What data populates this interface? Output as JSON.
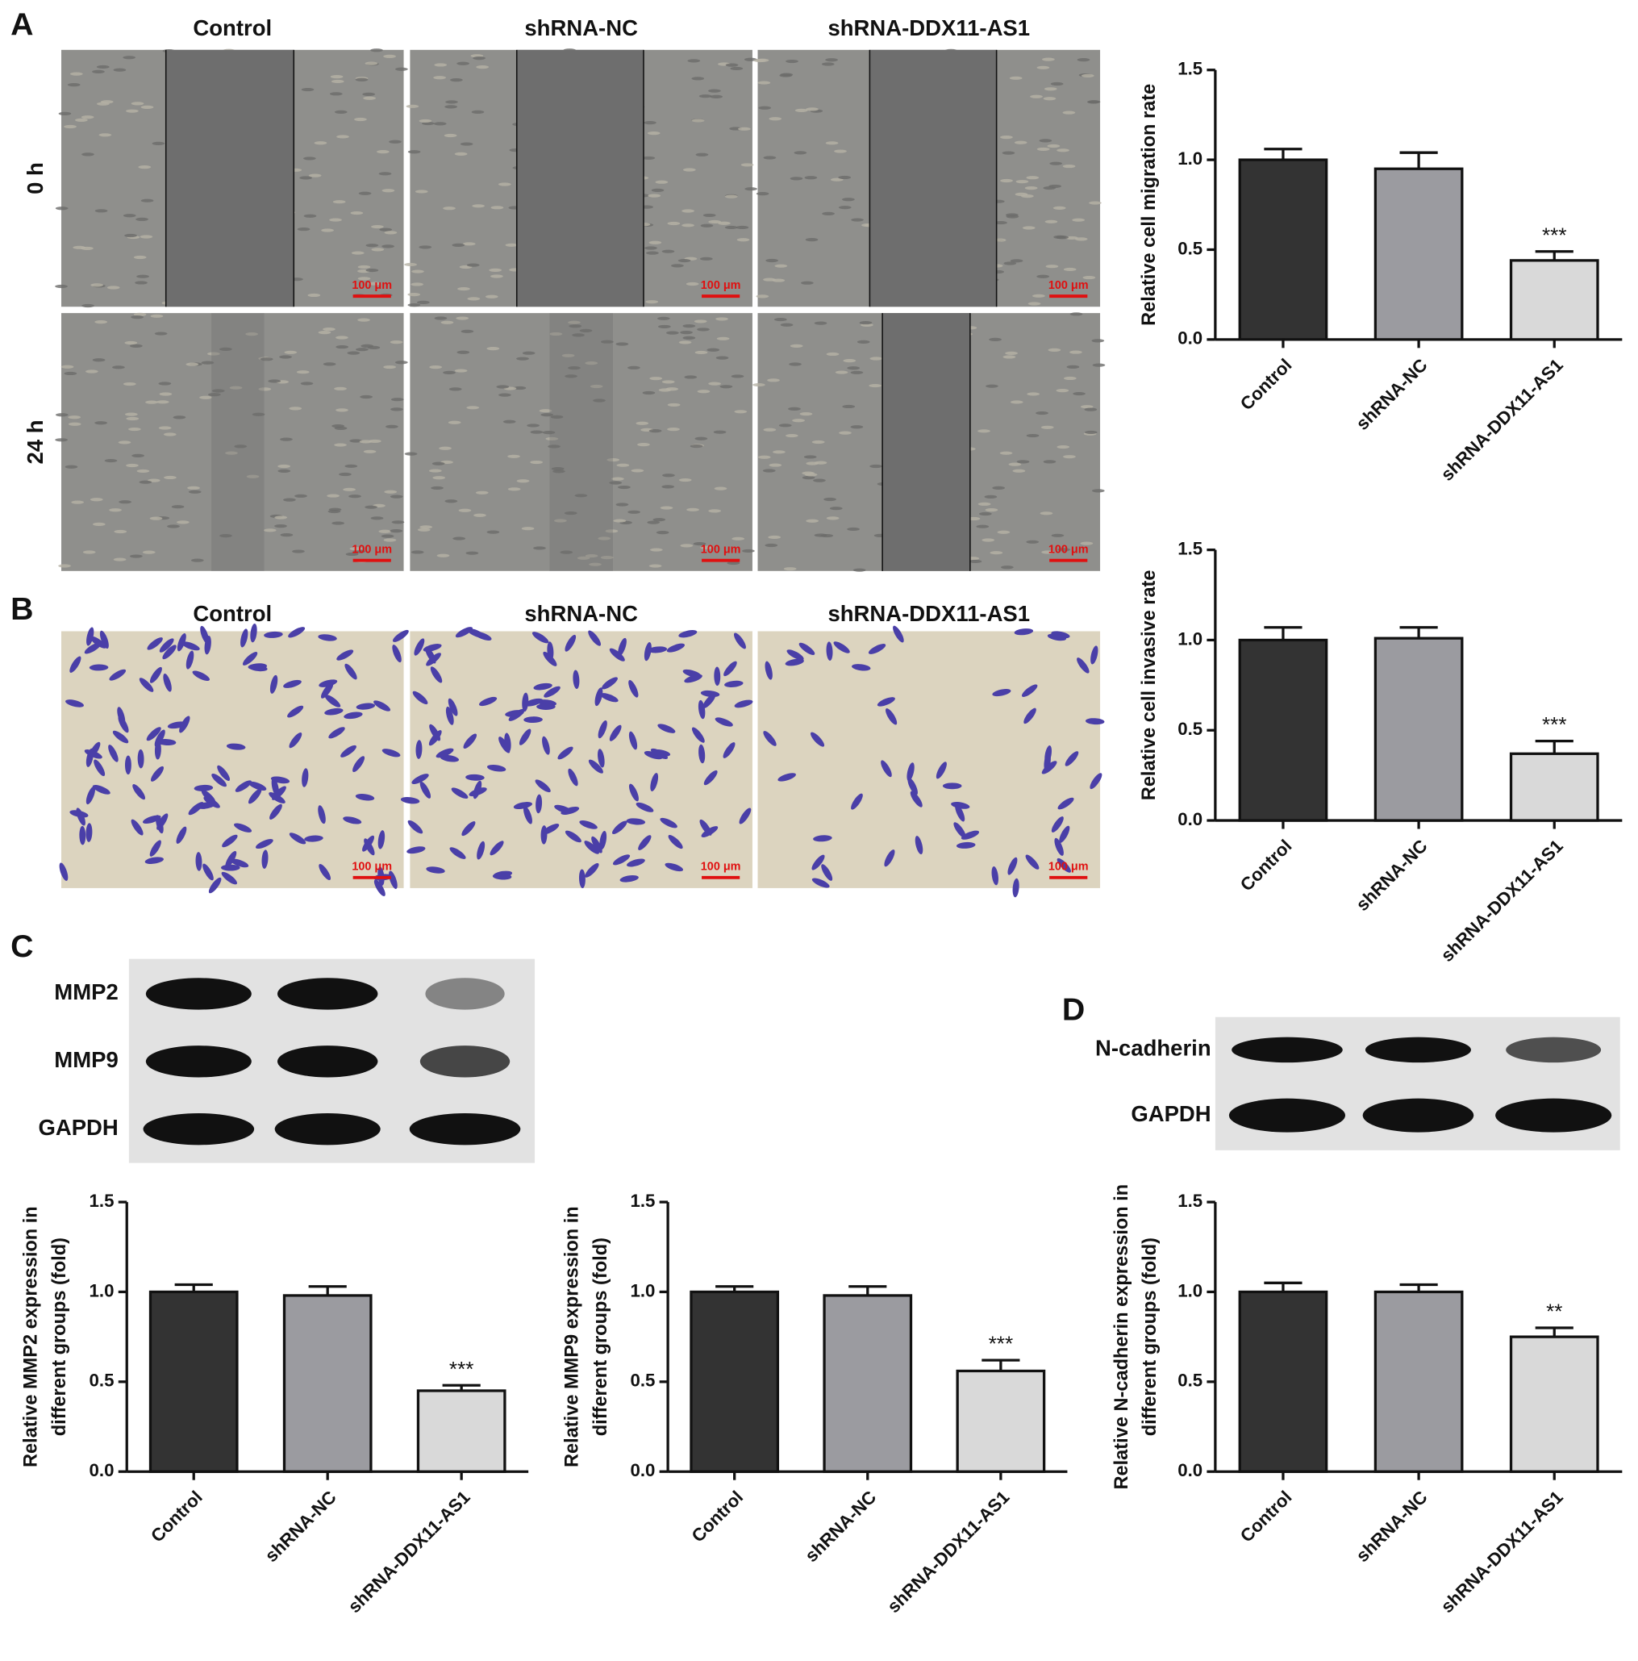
{
  "panels": {
    "a": "A",
    "b": "B",
    "c": "C",
    "d": "D"
  },
  "wound_healing": {
    "columns": [
      "Control",
      "shRNA-NC",
      "shRNA-DDX11-AS1"
    ],
    "rows": [
      "0 h",
      "24 h"
    ],
    "scale_bar": "100 μm"
  },
  "transwell": {
    "columns": [
      "Control",
      "shRNA-NC",
      "shRNA-DDX11-AS1"
    ],
    "scale_bar": "100 μm"
  },
  "blot_c": {
    "rows": [
      "MMP2",
      "MMP9",
      "GAPDH"
    ]
  },
  "blot_d": {
    "rows": [
      "N-cadherin",
      "GAPDH"
    ]
  },
  "chart_data": [
    {
      "type": "bar",
      "ylabel": [
        "Relative cell migration rate"
      ],
      "categories": [
        "Control",
        "shRNA-NC",
        "shRNA-DDX11-AS1"
      ],
      "values": [
        1.0,
        0.95,
        0.44
      ],
      "errors": [
        0.06,
        0.09,
        0.05
      ],
      "value_annotations": [
        null,
        null,
        "***"
      ],
      "colors": [
        "#333333",
        "#9b9ba0",
        "#d9d9d9"
      ],
      "ylim": [
        0,
        1.5
      ],
      "yticks": [
        {
          "value": 0,
          "label": "0.0"
        },
        0.5,
        {
          "value": 1,
          "label": "1.0"
        },
        1.5
      ]
    },
    {
      "type": "bar",
      "ylabel": [
        "Relative cell invasive rate"
      ],
      "categories": [
        "Control",
        "shRNA-NC",
        "shRNA-DDX11-AS1"
      ],
      "values": [
        1.0,
        1.01,
        0.37
      ],
      "errors": [
        0.07,
        0.06,
        0.07
      ],
      "value_annotations": [
        null,
        null,
        "***"
      ],
      "colors": [
        "#333333",
        "#9b9ba0",
        "#d9d9d9"
      ],
      "ylim": [
        0,
        1.5
      ],
      "yticks": [
        {
          "value": 0,
          "label": "0.0"
        },
        0.5,
        {
          "value": 1,
          "label": "1.0"
        },
        1.5
      ]
    },
    {
      "type": "bar",
      "ylabel": [
        "Relative MMP2 expression in",
        "different groups (fold)"
      ],
      "categories": [
        "Control",
        "shRNA-NC",
        "shRNA-DDX11-AS1"
      ],
      "values": [
        1.0,
        0.98,
        0.45
      ],
      "errors": [
        0.04,
        0.05,
        0.03
      ],
      "value_annotations": [
        null,
        null,
        "***"
      ],
      "colors": [
        "#333333",
        "#9b9ba0",
        "#d9d9d9"
      ],
      "ylim": [
        0,
        1.5
      ],
      "yticks": [
        {
          "value": 0,
          "label": "0.0"
        },
        0.5,
        {
          "value": 1,
          "label": "1.0"
        },
        1.5
      ]
    },
    {
      "type": "bar",
      "ylabel": [
        "Relative MMP9 expression in",
        "different groups (fold)"
      ],
      "categories": [
        "Control",
        "shRNA-NC",
        "shRNA-DDX11-AS1"
      ],
      "values": [
        1.0,
        0.98,
        0.56
      ],
      "errors": [
        0.03,
        0.05,
        0.06
      ],
      "value_annotations": [
        null,
        null,
        "***"
      ],
      "colors": [
        "#333333",
        "#9b9ba0",
        "#d9d9d9"
      ],
      "ylim": [
        0,
        1.5
      ],
      "yticks": [
        {
          "value": 0,
          "label": "0.0"
        },
        0.5,
        {
          "value": 1,
          "label": "1.0"
        },
        1.5
      ]
    },
    {
      "type": "bar",
      "ylabel": [
        "Relative N-cadherin expression in",
        "different groups (fold)"
      ],
      "categories": [
        "Control",
        "shRNA-NC",
        "shRNA-DDX11-AS1"
      ],
      "values": [
        1.0,
        1.0,
        0.75
      ],
      "errors": [
        0.05,
        0.04,
        0.05
      ],
      "value_annotations": [
        null,
        null,
        "**"
      ],
      "colors": [
        "#333333",
        "#9b9ba0",
        "#d9d9d9"
      ],
      "ylim": [
        0,
        1.5
      ],
      "yticks": [
        {
          "value": 0,
          "label": "0.0"
        },
        0.5,
        {
          "value": 1,
          "label": "1.0"
        },
        1.5
      ]
    }
  ]
}
